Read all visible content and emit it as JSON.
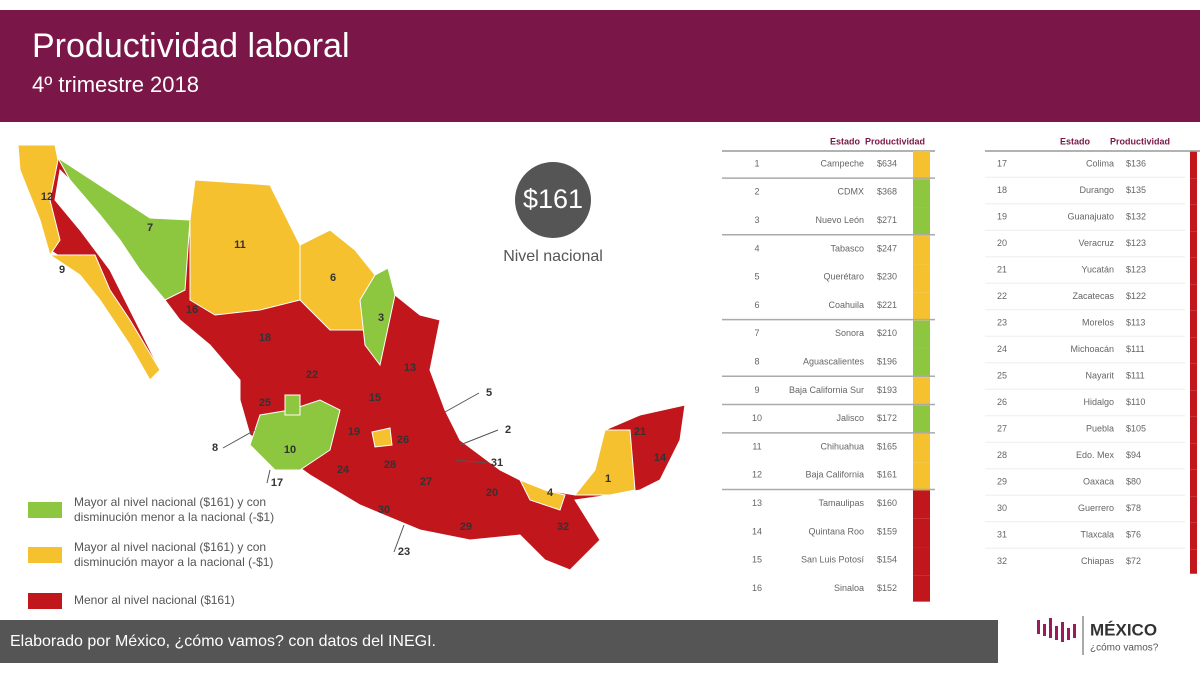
{
  "header": {
    "title": "Productividad laboral",
    "subtitle": "4º trimestre 2018"
  },
  "national": {
    "value": "$161",
    "label": "Nivel nacional"
  },
  "legend": [
    {
      "lines": [
        "Mayor al nivel nacional ($161) y con",
        "disminución menor a la nacional (-$1)"
      ],
      "color": "#8dc63f"
    },
    {
      "lines": [
        "Mayor al nivel nacional ($161) y con",
        "disminución mayor a la nacional (-$1)"
      ],
      "color": "#f5c12e"
    },
    {
      "lines": [
        "Menor al nivel nacional ($161)"
      ],
      "color": "#c0161c"
    }
  ],
  "table": {
    "headers": [
      "Estado",
      "Productividad"
    ],
    "rows": [
      {
        "rank": 1,
        "state": "Campeche",
        "value": "$634",
        "level": 1
      },
      {
        "rank": 2,
        "state": "CDMX",
        "value": "$368",
        "level": 0
      },
      {
        "rank": 3,
        "state": "Nuevo León",
        "value": "$271",
        "level": 0
      },
      {
        "rank": 4,
        "state": "Tabasco",
        "value": "$247",
        "level": 1
      },
      {
        "rank": 5,
        "state": "Querétaro",
        "value": "$230",
        "level": 1
      },
      {
        "rank": 6,
        "state": "Coahuila",
        "value": "$221",
        "level": 1
      },
      {
        "rank": 7,
        "state": "Sonora",
        "value": "$210",
        "level": 0
      },
      {
        "rank": 8,
        "state": "Aguascalientes",
        "value": "$196",
        "level": 0
      },
      {
        "rank": 9,
        "state": "Baja California Sur",
        "value": "$193",
        "level": 1
      },
      {
        "rank": 10,
        "state": "Jalisco",
        "value": "$172",
        "level": 0
      },
      {
        "rank": 11,
        "state": "Chihuahua",
        "value": "$165",
        "level": 1
      },
      {
        "rank": 12,
        "state": "Baja California",
        "value": "$161",
        "level": 1
      },
      {
        "rank": 13,
        "state": "Tamaulipas",
        "value": "$160",
        "level": 2
      },
      {
        "rank": 14,
        "state": "Quintana Roo",
        "value": "$159",
        "level": 2
      },
      {
        "rank": 15,
        "state": "San Luis Potosí",
        "value": "$154",
        "level": 2
      },
      {
        "rank": 16,
        "state": "Sinaloa",
        "value": "$152",
        "level": 2
      },
      {
        "rank": 17,
        "state": "Colima",
        "value": "$136",
        "level": 2
      },
      {
        "rank": 18,
        "state": "Durango",
        "value": "$135",
        "level": 2
      },
      {
        "rank": 19,
        "state": "Guanajuato",
        "value": "$132",
        "level": 2
      },
      {
        "rank": 20,
        "state": "Veracruz",
        "value": "$123",
        "level": 2
      },
      {
        "rank": 21,
        "state": "Yucatán",
        "value": "$123",
        "level": 2
      },
      {
        "rank": 22,
        "state": "Zacatecas",
        "value": "$122",
        "level": 2
      },
      {
        "rank": 23,
        "state": "Morelos",
        "value": "$113",
        "level": 2
      },
      {
        "rank": 24,
        "state": "Michoacán",
        "value": "$111",
        "level": 2
      },
      {
        "rank": 25,
        "state": "Nayarit",
        "value": "$111",
        "level": 2
      },
      {
        "rank": 26,
        "state": "Hidalgo",
        "value": "$110",
        "level": 2
      },
      {
        "rank": 27,
        "state": "Puebla",
        "value": "$105",
        "level": 2
      },
      {
        "rank": 28,
        "state": "Edo. Mex",
        "value": "$94",
        "level": 2
      },
      {
        "rank": 29,
        "state": "Oaxaca",
        "value": "$80",
        "level": 2
      },
      {
        "rank": 30,
        "state": "Guerrero",
        "value": "$78",
        "level": 2
      },
      {
        "rank": 31,
        "state": "Tlaxcala",
        "value": "$76",
        "level": 2
      },
      {
        "rank": 32,
        "state": "Chiapas",
        "value": "$72",
        "level": 2
      }
    ]
  },
  "map_labels": [
    12,
    9,
    7,
    11,
    6,
    3,
    16,
    18,
    13,
    22,
    15,
    25,
    19,
    26,
    10,
    24,
    28,
    27,
    20,
    30,
    29,
    4,
    1,
    21,
    14,
    32,
    5,
    2,
    31,
    8,
    17,
    23
  ],
  "footer": {
    "source": "Elaborado por México, ¿cómo vamos? con datos del INEGI.",
    "brand": "MÉXICO",
    "tagline": "¿cómo vamos?"
  }
}
